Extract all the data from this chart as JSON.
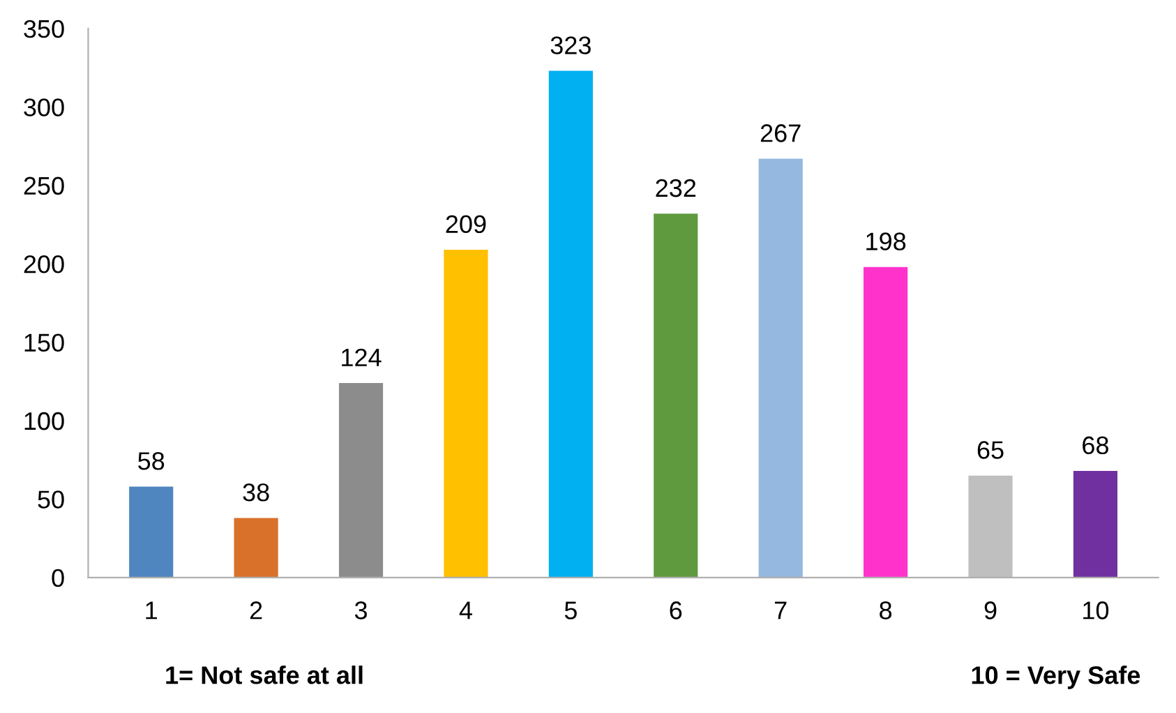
{
  "chart_data": {
    "type": "bar",
    "categories": [
      "1",
      "2",
      "3",
      "4",
      "5",
      "6",
      "7",
      "8",
      "9",
      "10"
    ],
    "values": [
      58,
      38,
      124,
      209,
      323,
      232,
      267,
      198,
      65,
      68
    ],
    "colors": [
      "#4f86c0",
      "#d9712b",
      "#8c8c8c",
      "#ffc000",
      "#00b0f0",
      "#5f9a3f",
      "#95b8e0",
      "#ff33cc",
      "#bfbfbf",
      "#7030a0"
    ],
    "ylim": [
      0,
      350
    ],
    "yticks": [
      0,
      50,
      100,
      150,
      200,
      250,
      300,
      350
    ],
    "grid": false,
    "data_labels": true,
    "legend": false,
    "annotations": [
      "1= Not safe at all",
      "10 = Very Safe"
    ]
  }
}
